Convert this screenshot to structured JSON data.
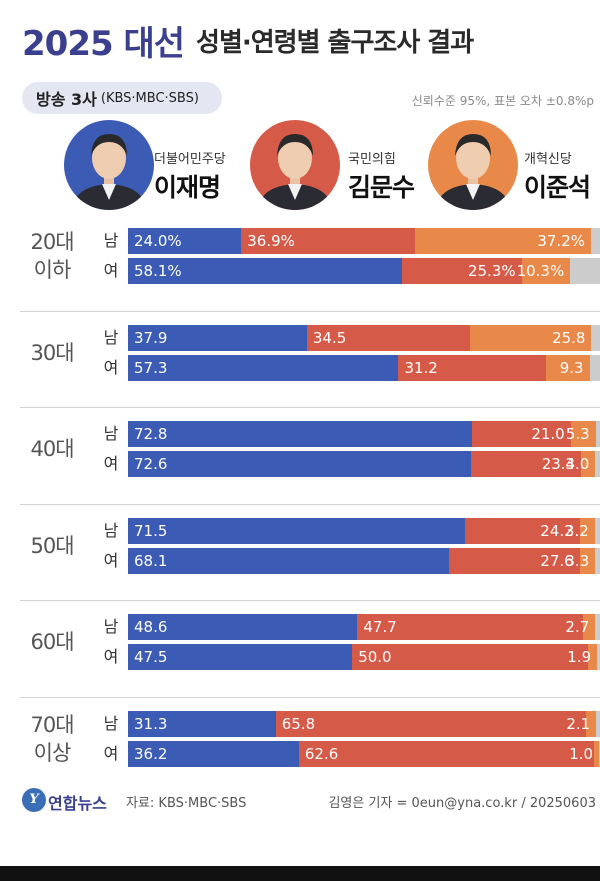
{
  "header": {
    "title_year": "2025 대선",
    "title_main": "성별·연령별 출구조사 결과",
    "broadcast_main": "방송 3사",
    "broadcast_sub": "(KBS·MBC·SBS)",
    "note": "신뢰수준 95%, 표본 오차 ±0.8%p"
  },
  "candidates": [
    {
      "party": "더불어민주당",
      "name": "이재명",
      "color": "#3b5bb5",
      "photo_bg": "#3b5bb5",
      "icon": "portrait-icon"
    },
    {
      "party": "국민의힘",
      "name": "김문수",
      "color": "#d65a48",
      "photo_bg": "#d65a48",
      "icon": "portrait-icon"
    },
    {
      "party": "개혁신당",
      "name": "이준석",
      "color": "#e8894a",
      "photo_bg": "#e8894a",
      "icon": "portrait-icon"
    }
  ],
  "chart_data": {
    "type": "bar",
    "stacked": true,
    "orientation": "horizontal",
    "series_colors": [
      "#3b5bb5",
      "#d65a48",
      "#e8894a",
      "#cccccc"
    ],
    "groups": [
      {
        "age_lines": [
          "20대",
          "이하"
        ],
        "rows": [
          {
            "gender": "남",
            "labels": [
              "24.0%",
              "36.9%",
              "37.2%"
            ],
            "values": [
              24.0,
              36.9,
              37.2
            ]
          },
          {
            "gender": "여",
            "labels": [
              "58.1%",
              "25.3%",
              "10.3%"
            ],
            "values": [
              58.1,
              25.3,
              10.3
            ]
          }
        ]
      },
      {
        "age_lines": [
          "30대"
        ],
        "rows": [
          {
            "gender": "남",
            "labels": [
              "37.9",
              "34.5",
              "25.8"
            ],
            "values": [
              37.9,
              34.5,
              25.8
            ]
          },
          {
            "gender": "여",
            "labels": [
              "57.3",
              "31.2",
              "9.3"
            ],
            "values": [
              57.3,
              31.2,
              9.3
            ]
          }
        ]
      },
      {
        "age_lines": [
          "40대"
        ],
        "rows": [
          {
            "gender": "남",
            "labels": [
              "72.8",
              "21.0",
              "5.3"
            ],
            "values": [
              72.8,
              21.0,
              5.3
            ]
          },
          {
            "gender": "여",
            "labels": [
              "72.6",
              "23.4",
              "3.0"
            ],
            "values": [
              72.6,
              23.4,
              3.0
            ]
          }
        ]
      },
      {
        "age_lines": [
          "50대"
        ],
        "rows": [
          {
            "gender": "남",
            "labels": [
              "71.5",
              "24.2",
              "3.2"
            ],
            "values": [
              71.5,
              24.2,
              3.2
            ]
          },
          {
            "gender": "여",
            "labels": [
              "68.1",
              "27.6",
              "3.3"
            ],
            "values": [
              68.1,
              27.6,
              3.3
            ]
          }
        ]
      },
      {
        "age_lines": [
          "60대"
        ],
        "rows": [
          {
            "gender": "남",
            "labels": [
              "48.6",
              "47.7",
              "2.7"
            ],
            "values": [
              48.6,
              47.7,
              2.7
            ]
          },
          {
            "gender": "여",
            "labels": [
              "47.5",
              "50.0",
              "1.9"
            ],
            "values": [
              47.5,
              50.0,
              1.9
            ]
          }
        ]
      },
      {
        "age_lines": [
          "70대",
          "이상"
        ],
        "rows": [
          {
            "gender": "남",
            "labels": [
              "31.3",
              "65.8",
              "2.1"
            ],
            "values": [
              31.3,
              65.8,
              2.1
            ]
          },
          {
            "gender": "여",
            "labels": [
              "36.2",
              "62.6",
              "1.0"
            ],
            "values": [
              36.2,
              62.6,
              1.0
            ]
          }
        ]
      }
    ]
  },
  "footer": {
    "logo_glyph": "Y",
    "logo_text": "연합뉴스",
    "source": "자료: KBS·MBC·SBS",
    "credit": "김영은 기자 = 0eun@yna.co.kr / 20250603"
  }
}
